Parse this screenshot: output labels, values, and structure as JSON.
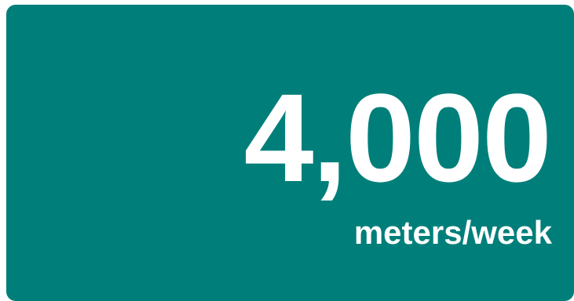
{
  "card": {
    "value": "4,000",
    "unit": "meters/week",
    "background_color": "#007f7a",
    "text_color": "#ffffff"
  }
}
